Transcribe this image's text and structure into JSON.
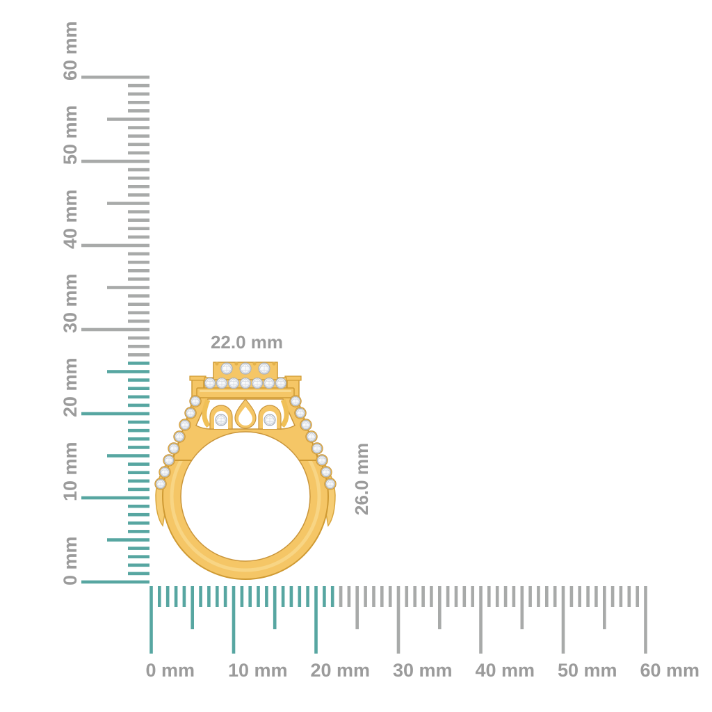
{
  "object": {
    "name": "gold-diamond-ring-side-view",
    "description": "Yellow gold ring profile with diamond halo head, scrollwork gallery and diamond-set shoulders, shown against millimetre rulers"
  },
  "dimensions": {
    "width_label": "22.0 mm",
    "height_label": "26.0 mm",
    "width_mm": 22.0,
    "height_mm": 26.0
  },
  "rulers": {
    "unit": "mm",
    "vertical": {
      "min": 0,
      "max": 60,
      "label_step": 10,
      "labels": [
        "0 mm",
        "10 mm",
        "20 mm",
        "30 mm",
        "40 mm",
        "50 mm",
        "60 mm"
      ],
      "highlight_to_mm": 26
    },
    "horizontal": {
      "min": 0,
      "max": 60,
      "label_step": 10,
      "labels": [
        "0 mm",
        "10 mm",
        "20 mm",
        "30 mm",
        "40 mm",
        "50 mm",
        "60 mm"
      ],
      "highlight_to_mm": 22
    }
  },
  "colors": {
    "background": "#ffffff",
    "tick_gray": "#a8aaa9",
    "tick_teal": "#57a6a1",
    "label_gray": "#9b9b9b",
    "gold": "#f5c666",
    "gold_stroke": "#cf9a33",
    "gold_deep": "#d9a63e",
    "gold_light": "#fbe3a1",
    "diamond_fill": "#f6f8fa",
    "diamond_edge": "#a9b0bb"
  }
}
